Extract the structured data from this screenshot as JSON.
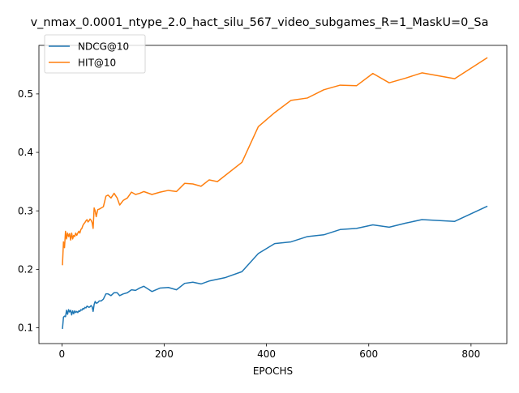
{
  "chart_data": {
    "type": "line",
    "title": "v_nmax_0.0001_ntype_2.0_hact_silu_567_video_subgames_R=1_MaskU=0_Sa",
    "xlabel": "EPOCHS",
    "ylabel": "",
    "xlim": [
      -45,
      870
    ],
    "ylim": [
      0.073,
      0.583
    ],
    "xticks": [
      0,
      200,
      400,
      600,
      800
    ],
    "yticks": [
      0.1,
      0.2,
      0.3,
      0.4,
      0.5
    ],
    "grid": false,
    "legend": "top-left",
    "series": [
      {
        "name": "NDCG@10",
        "color": "#1f77b4",
        "points": [
          [
            1,
            0.098
          ],
          [
            3,
            0.118
          ],
          [
            5,
            0.12
          ],
          [
            7,
            0.119
          ],
          [
            9,
            0.13
          ],
          [
            11,
            0.123
          ],
          [
            13,
            0.131
          ],
          [
            15,
            0.127
          ],
          [
            17,
            0.13
          ],
          [
            19,
            0.122
          ],
          [
            21,
            0.129
          ],
          [
            23,
            0.124
          ],
          [
            25,
            0.129
          ],
          [
            27,
            0.126
          ],
          [
            29,
            0.128
          ],
          [
            31,
            0.126
          ],
          [
            33,
            0.129
          ],
          [
            35,
            0.128
          ],
          [
            37,
            0.131
          ],
          [
            39,
            0.13
          ],
          [
            41,
            0.133
          ],
          [
            43,
            0.132
          ],
          [
            45,
            0.135
          ],
          [
            47,
            0.134
          ],
          [
            49,
            0.137
          ],
          [
            51,
            0.136
          ],
          [
            53,
            0.135
          ],
          [
            55,
            0.136
          ],
          [
            57,
            0.138
          ],
          [
            59,
            0.136
          ],
          [
            61,
            0.128
          ],
          [
            63,
            0.14
          ],
          [
            65,
            0.145
          ],
          [
            67,
            0.142
          ],
          [
            70,
            0.143
          ],
          [
            73,
            0.146
          ],
          [
            77,
            0.146
          ],
          [
            81,
            0.149
          ],
          [
            86,
            0.158
          ],
          [
            90,
            0.158
          ],
          [
            96,
            0.155
          ],
          [
            102,
            0.16
          ],
          [
            108,
            0.16
          ],
          [
            113,
            0.155
          ],
          [
            120,
            0.158
          ],
          [
            128,
            0.16
          ],
          [
            136,
            0.165
          ],
          [
            144,
            0.164
          ],
          [
            152,
            0.168
          ],
          [
            160,
            0.171
          ],
          [
            176,
            0.162
          ],
          [
            192,
            0.168
          ],
          [
            208,
            0.169
          ],
          [
            224,
            0.165
          ],
          [
            240,
            0.176
          ],
          [
            256,
            0.178
          ],
          [
            272,
            0.175
          ],
          [
            288,
            0.18
          ],
          [
            320,
            0.186
          ],
          [
            352,
            0.196
          ],
          [
            384,
            0.227
          ],
          [
            416,
            0.244
          ],
          [
            448,
            0.247
          ],
          [
            480,
            0.256
          ],
          [
            512,
            0.259
          ],
          [
            544,
            0.268
          ],
          [
            576,
            0.27
          ],
          [
            608,
            0.276
          ],
          [
            640,
            0.272
          ],
          [
            672,
            0.279
          ],
          [
            704,
            0.285
          ],
          [
            768,
            0.282
          ],
          [
            832,
            0.308
          ]
        ]
      },
      {
        "name": "HIT@10",
        "color": "#ff7f0e",
        "points": [
          [
            1,
            0.207
          ],
          [
            3,
            0.247
          ],
          [
            5,
            0.237
          ],
          [
            7,
            0.265
          ],
          [
            9,
            0.252
          ],
          [
            11,
            0.262
          ],
          [
            13,
            0.256
          ],
          [
            15,
            0.261
          ],
          [
            17,
            0.25
          ],
          [
            19,
            0.262
          ],
          [
            21,
            0.252
          ],
          [
            23,
            0.258
          ],
          [
            25,
            0.256
          ],
          [
            27,
            0.262
          ],
          [
            29,
            0.258
          ],
          [
            31,
            0.262
          ],
          [
            33,
            0.265
          ],
          [
            35,
            0.262
          ],
          [
            37,
            0.268
          ],
          [
            39,
            0.27
          ],
          [
            41,
            0.275
          ],
          [
            43,
            0.278
          ],
          [
            45,
            0.28
          ],
          [
            47,
            0.283
          ],
          [
            49,
            0.285
          ],
          [
            51,
            0.281
          ],
          [
            53,
            0.283
          ],
          [
            55,
            0.286
          ],
          [
            57,
            0.284
          ],
          [
            59,
            0.28
          ],
          [
            61,
            0.27
          ],
          [
            63,
            0.305
          ],
          [
            65,
            0.3
          ],
          [
            67,
            0.29
          ],
          [
            70,
            0.302
          ],
          [
            73,
            0.303
          ],
          [
            77,
            0.305
          ],
          [
            81,
            0.307
          ],
          [
            86,
            0.325
          ],
          [
            90,
            0.327
          ],
          [
            96,
            0.322
          ],
          [
            102,
            0.33
          ],
          [
            108,
            0.322
          ],
          [
            113,
            0.31
          ],
          [
            120,
            0.318
          ],
          [
            128,
            0.322
          ],
          [
            136,
            0.332
          ],
          [
            144,
            0.328
          ],
          [
            152,
            0.33
          ],
          [
            160,
            0.333
          ],
          [
            176,
            0.328
          ],
          [
            192,
            0.332
          ],
          [
            208,
            0.335
          ],
          [
            224,
            0.333
          ],
          [
            240,
            0.347
          ],
          [
            256,
            0.346
          ],
          [
            272,
            0.342
          ],
          [
            288,
            0.353
          ],
          [
            304,
            0.35
          ],
          [
            352,
            0.383
          ],
          [
            384,
            0.444
          ],
          [
            416,
            0.468
          ],
          [
            448,
            0.489
          ],
          [
            480,
            0.493
          ],
          [
            512,
            0.507
          ],
          [
            544,
            0.515
          ],
          [
            576,
            0.514
          ],
          [
            608,
            0.535
          ],
          [
            640,
            0.519
          ],
          [
            672,
            0.527
          ],
          [
            704,
            0.536
          ],
          [
            768,
            0.526
          ],
          [
            832,
            0.562
          ]
        ]
      }
    ]
  }
}
